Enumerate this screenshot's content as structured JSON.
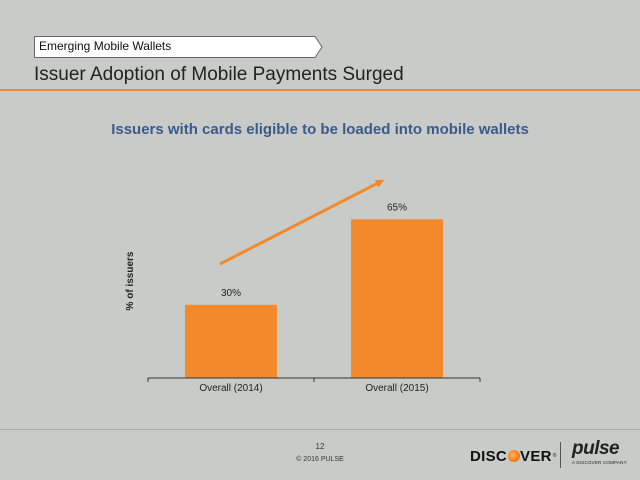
{
  "section": {
    "label": "Emerging Mobile Wallets"
  },
  "header": {
    "title": "Issuer Adoption of Mobile Payments Surged"
  },
  "chart_data": {
    "type": "bar",
    "title": "Issuers with cards eligible to be loaded into mobile wallets",
    "xlabel": "",
    "ylabel": "% of issuers",
    "categories": [
      "Overall (2014)",
      "Overall (2015)"
    ],
    "values": [
      30,
      65
    ],
    "value_labels": [
      "30%",
      "65%"
    ],
    "ylim": [
      0,
      75
    ],
    "grid": false,
    "trend_arrow": true
  },
  "colors": {
    "bar": "#f28a2c",
    "accent": "#f28a2c",
    "subtitle": "#3a5a8c",
    "background": "#c9cbc9"
  },
  "footer": {
    "page_number": "12",
    "copyright": "© 2016 PULSE"
  },
  "logos": {
    "discover": {
      "pre": "DISC",
      "post": "VER",
      "tm": "®"
    },
    "pulse": {
      "word": "pulse",
      "tagline": "A DISCOVER COMPANY"
    }
  }
}
